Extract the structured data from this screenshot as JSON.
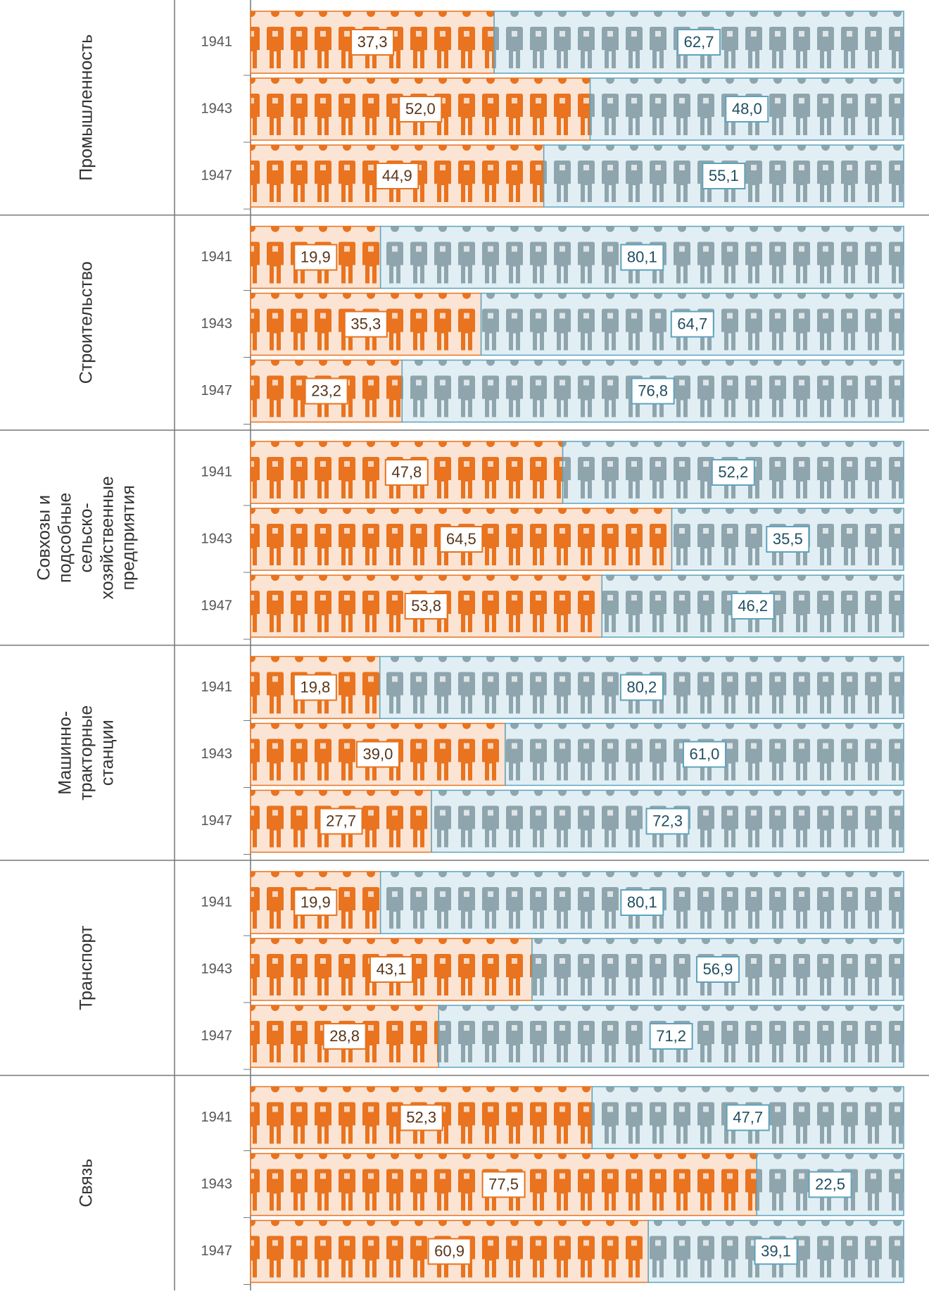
{
  "chart_data": {
    "type": "bar",
    "orientation": "horizontal",
    "stacked": true,
    "xlim": [
      0,
      100
    ],
    "colors": [
      "#e9731e",
      "#8fa5ad"
    ],
    "backgrounds": [
      "#fbe4d4",
      "#e1eff5"
    ],
    "borders": [
      "#e9731e",
      "#5fa3bd"
    ],
    "label_colors": [
      "#5a3518",
      "#1f4f62"
    ],
    "groups": [
      {
        "label": [
          "Промышленность"
        ],
        "years": [
          "1941",
          "1943",
          "1947"
        ],
        "values": [
          [
            37.3,
            62.7
          ],
          [
            52.0,
            48.0
          ],
          [
            44.9,
            55.1
          ]
        ],
        "value_labels": [
          [
            "37,3",
            "62,7"
          ],
          [
            "52,0",
            "48,0"
          ],
          [
            "44,9",
            "55,1"
          ]
        ]
      },
      {
        "label": [
          "Строительство"
        ],
        "years": [
          "1941",
          "1943",
          "1947"
        ],
        "values": [
          [
            19.9,
            80.1
          ],
          [
            35.3,
            64.7
          ],
          [
            23.2,
            76.8
          ]
        ],
        "value_labels": [
          [
            "19,9",
            "80,1"
          ],
          [
            "35,3",
            "64,7"
          ],
          [
            "23,2",
            "76,8"
          ]
        ]
      },
      {
        "label": [
          "Совхозы и",
          "подсобные",
          "сельско-",
          "хозяйственные",
          "предприятия"
        ],
        "years": [
          "1941",
          "1943",
          "1947"
        ],
        "values": [
          [
            47.8,
            52.2
          ],
          [
            64.5,
            35.5
          ],
          [
            53.8,
            46.2
          ]
        ],
        "value_labels": [
          [
            "47,8",
            "52,2"
          ],
          [
            "64,5",
            "35,5"
          ],
          [
            "53,8",
            "46,2"
          ]
        ]
      },
      {
        "label": [
          "Машинно-",
          "тракторные",
          "станции"
        ],
        "years": [
          "1941",
          "1943",
          "1947"
        ],
        "values": [
          [
            19.8,
            80.2
          ],
          [
            39.0,
            61.0
          ],
          [
            27.7,
            72.3
          ]
        ],
        "value_labels": [
          [
            "19,8",
            "80,2"
          ],
          [
            "39,0",
            "61,0"
          ],
          [
            "27,7",
            "72,3"
          ]
        ]
      },
      {
        "label": [
          "Транспорт"
        ],
        "years": [
          "1941",
          "1943",
          "1947"
        ],
        "values": [
          [
            19.9,
            80.1
          ],
          [
            43.1,
            56.9
          ],
          [
            28.8,
            71.2
          ]
        ],
        "value_labels": [
          [
            "19,9",
            "80,1"
          ],
          [
            "43,1",
            "56,9"
          ],
          [
            "28,8",
            "71,2"
          ]
        ]
      },
      {
        "label": [
          "Связь"
        ],
        "years": [
          "1941",
          "1943",
          "1947"
        ],
        "values": [
          [
            52.3,
            47.7
          ],
          [
            77.5,
            22.5
          ],
          [
            60.9,
            39.1
          ]
        ],
        "value_labels": [
          [
            "52,3",
            "47,7"
          ],
          [
            "77,5",
            "22,5"
          ],
          [
            "60,9",
            "39,1"
          ]
        ]
      }
    ]
  }
}
